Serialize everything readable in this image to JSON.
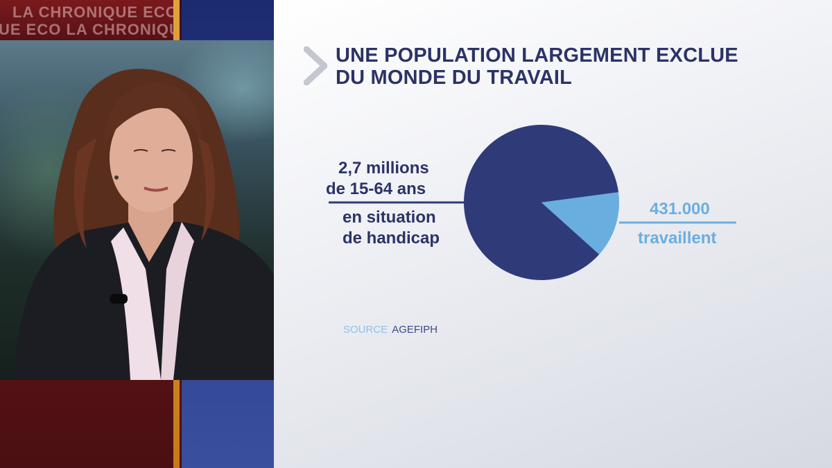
{
  "broadcast": {
    "ticker_line_1": "LA CHRONIQUE ECO",
    "ticker_line_2": "UE ECO  LA CHRONIQU"
  },
  "graphic": {
    "title_line_1": "UNE POPULATION LARGEMENT EXCLUE",
    "title_line_2": "DU MONDE DU TRAVAIL",
    "source_label": "SOURCE",
    "source_value": "AGEFIPH"
  },
  "chart_data": {
    "type": "pie",
    "slices": [
      {
        "label_lines": [
          "2,7 millions",
          "de 15-64 ans",
          "en situation",
          "de handicap"
        ],
        "value": 2700000,
        "color": "#2f3b79"
      },
      {
        "label_lines": [
          "431.000",
          "travaillent"
        ],
        "value": 431000,
        "color": "#6aaee0"
      }
    ],
    "colors": {
      "main": "#2f3b79",
      "highlight": "#6aaee0",
      "title": "#2b3366"
    }
  }
}
